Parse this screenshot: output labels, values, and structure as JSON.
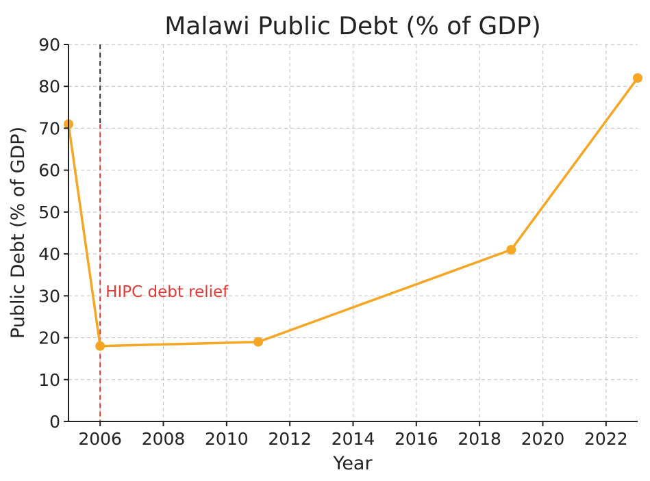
{
  "chart_data": {
    "type": "line",
    "title": "Malawi Public Debt (% of GDP)",
    "xlabel": "Year",
    "ylabel": "Public Debt (% of GDP)",
    "xlim": [
      2005,
      2023
    ],
    "ylim": [
      0,
      90
    ],
    "x_ticks": [
      "2006",
      "2008",
      "2010",
      "2012",
      "2014",
      "2016",
      "2018",
      "2020",
      "2022"
    ],
    "y_ticks": [
      "0",
      "10",
      "20",
      "30",
      "40",
      "50",
      "60",
      "70",
      "80",
      "90"
    ],
    "grid": true,
    "series": [
      {
        "x": [
          2005,
          2006,
          2011,
          2019,
          2023
        ],
        "values": [
          71,
          18,
          19,
          41,
          82
        ],
        "color": "#F5A623",
        "marker": "circle"
      }
    ],
    "annotations": [
      {
        "type": "vline",
        "x": 2006,
        "text": "HIPC debt relief",
        "text_y": 31,
        "color": "#E53935",
        "upper_color": "#333333"
      }
    ]
  }
}
